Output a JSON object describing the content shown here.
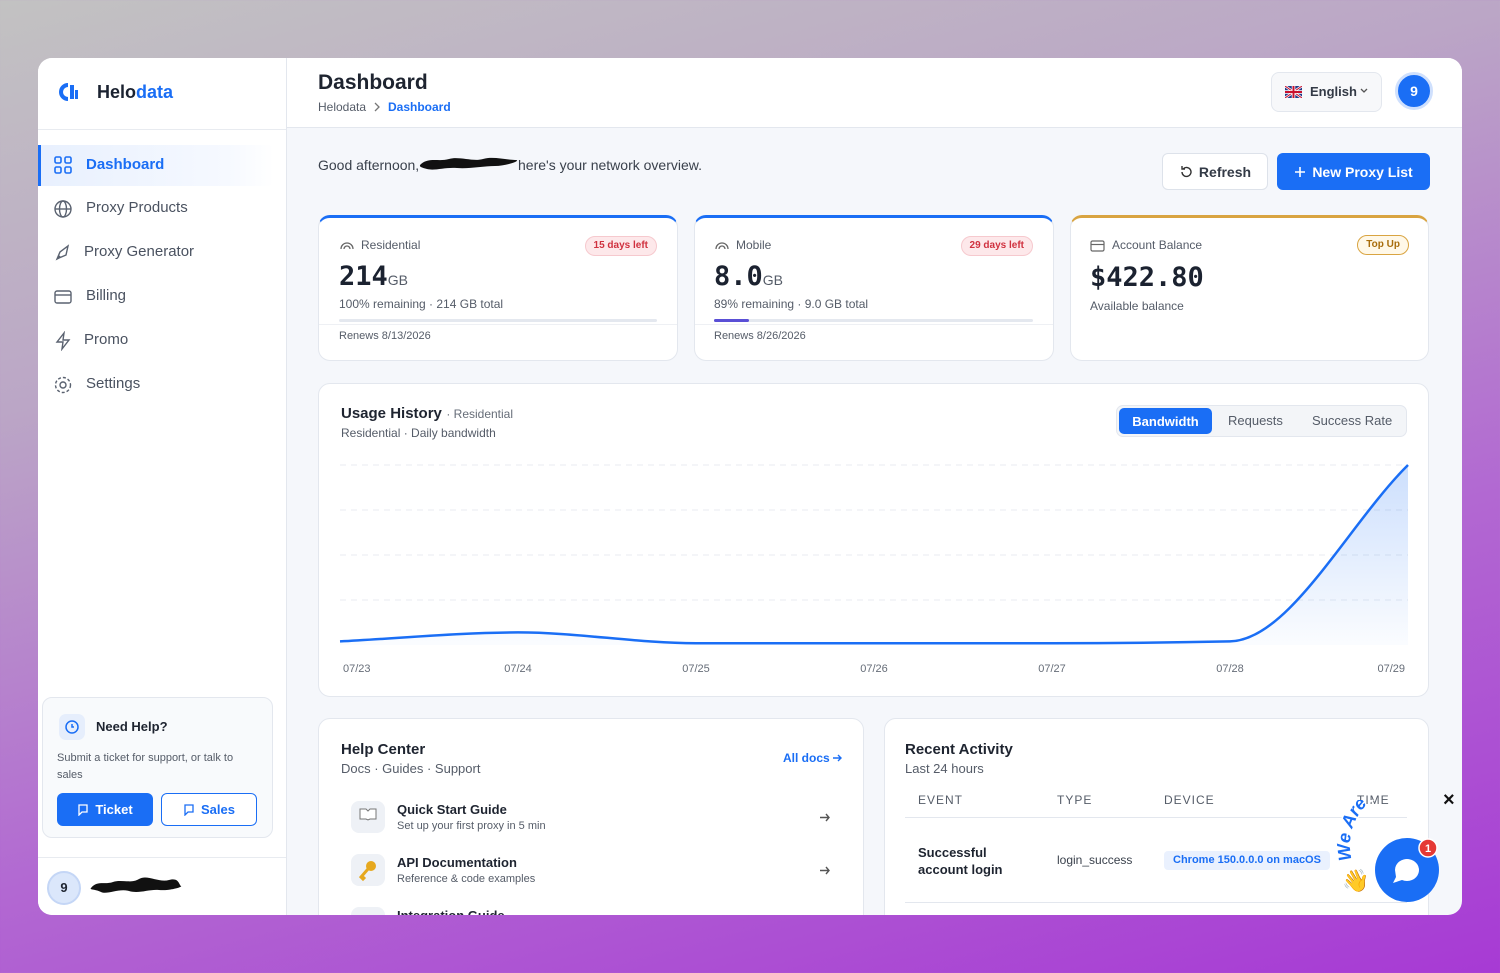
{
  "brand": {
    "name_main": "Helo",
    "name_accent": "data"
  },
  "nav": [
    "Dashboard",
    "Proxy Products",
    "Proxy Generator",
    "Billing",
    "Promo",
    "Settings"
  ],
  "help_box": {
    "title": "Need Help?",
    "text": "Submit a ticket for support, or talk to sales",
    "buttons": [
      "Ticket",
      "Sales"
    ]
  },
  "user": {
    "avatar": "9"
  },
  "header": {
    "title": "Dashboard",
    "breadcrumb": [
      "Helodata",
      "Dashboard"
    ],
    "language": "English",
    "avatar": "9"
  },
  "greeting": {
    "before": "Good afternoon,",
    "after": "here's your network overview."
  },
  "actions": [
    "Refresh",
    "New Proxy List"
  ],
  "cards": [
    {
      "label": "Residential",
      "badge": "15 days left",
      "amount": "214",
      "unit": "GB",
      "detail": "100% remaining · 214 GB total",
      "progress_used": 0,
      "renews": "Renews 8/13/2026"
    },
    {
      "label": "Mobile",
      "badge": "29 days left",
      "amount": "8.0",
      "unit": "GB",
      "detail": "89% remaining · 9.0 GB total",
      "progress_used": 11,
      "renews": "Renews 8/26/2026"
    },
    {
      "label": "Account Balance",
      "badge": "Top Up",
      "amount": "$422.80",
      "detail": "Available balance"
    }
  ],
  "chart_data": {
    "type": "line",
    "title": "Usage History",
    "tag": "· Residential",
    "subtitle": "Residential · Daily bandwidth",
    "tabs": [
      "Bandwidth",
      "Requests",
      "Success Rate"
    ],
    "categories": [
      "07/23",
      "07/24",
      "07/25",
      "07/26",
      "07/27",
      "07/28",
      "07/29"
    ],
    "values": [
      2,
      7,
      1,
      1,
      1,
      2,
      100
    ],
    "color": "#1a6ef5",
    "ylim": [
      0,
      100
    ]
  },
  "help_center": {
    "title": "Help Center",
    "subtitle": "Docs · Guides · Support",
    "link": "All docs",
    "items": [
      {
        "title": "Quick Start Guide",
        "desc": "Set up your first proxy in 5 min"
      },
      {
        "title": "API Documentation",
        "desc": "Reference & code examples"
      },
      {
        "title": "Integration Guide"
      }
    ]
  },
  "recent_activity": {
    "title": "Recent Activity",
    "subtitle": "Last 24 hours",
    "columns": [
      "EVENT",
      "TYPE",
      "DEVICE",
      "TIME"
    ],
    "rows": [
      [
        "Successful account login",
        "login_success",
        "Chrome 150.0.0.0 on macOS"
      ]
    ]
  },
  "chat": {
    "text": "We Are Here!",
    "badge": "1",
    "close": "×"
  }
}
